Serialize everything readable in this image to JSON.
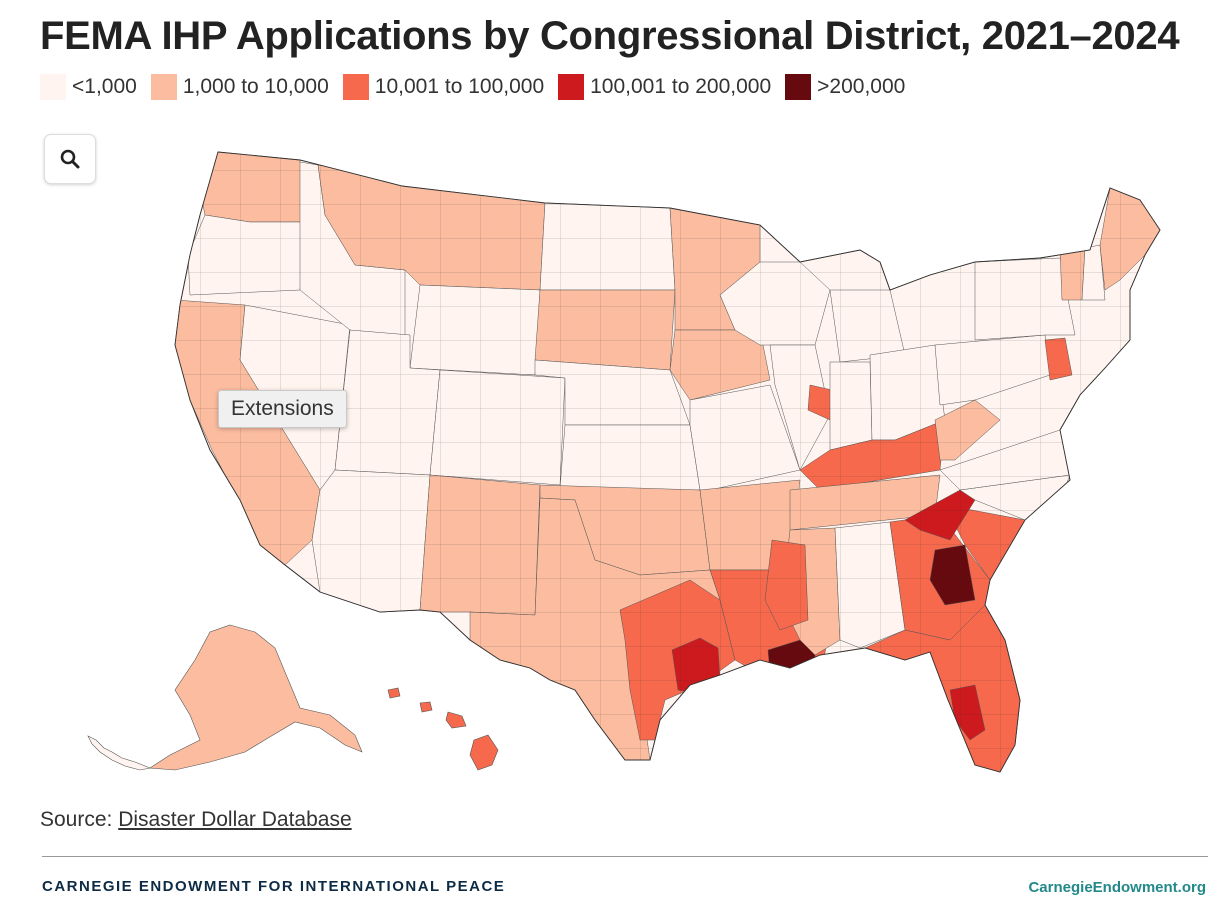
{
  "title": "FEMA IHP Applications by Congressional District, 2021–2024",
  "legend": [
    {
      "label": "<1,000",
      "color": "#fff4ef"
    },
    {
      "label": "1,000 to 10,000",
      "color": "#fbbc9f"
    },
    {
      "label": "10,001 to 100,000",
      "color": "#f6694d"
    },
    {
      "label": "100,001 to 200,000",
      "color": "#cc1a1f"
    },
    {
      "label": ">200,000",
      "color": "#670a0f"
    }
  ],
  "zoom_button": {
    "icon": "search-icon"
  },
  "tooltip": {
    "label": "Extensions"
  },
  "source": {
    "prefix": "Source:",
    "link_text": "Disaster Dollar Database"
  },
  "footer": {
    "org": "CARNEGIE ENDOWMENT FOR INTERNATIONAL PEACE",
    "site": "CarnegieEndowment.org"
  },
  "regions": [
    {
      "id": "washington",
      "cls": 1
    },
    {
      "id": "oregon",
      "cls": 0
    },
    {
      "id": "california",
      "cls": 1
    },
    {
      "id": "nevada",
      "cls": 0
    },
    {
      "id": "idaho",
      "cls": 0
    },
    {
      "id": "montana",
      "cls": 1
    },
    {
      "id": "wyoming",
      "cls": 0
    },
    {
      "id": "utah",
      "cls": 0
    },
    {
      "id": "arizona",
      "cls": 0
    },
    {
      "id": "colorado",
      "cls": 0
    },
    {
      "id": "new-mexico",
      "cls": 1
    },
    {
      "id": "north-dakota",
      "cls": 0
    },
    {
      "id": "south-dakota",
      "cls": 1
    },
    {
      "id": "nebraska",
      "cls": 0
    },
    {
      "id": "kansas",
      "cls": 0
    },
    {
      "id": "oklahoma",
      "cls": 1
    },
    {
      "id": "texas",
      "cls": 1
    },
    {
      "id": "texas-gulf-coast",
      "cls": 2
    },
    {
      "id": "houston",
      "cls": 3
    },
    {
      "id": "minnesota",
      "cls": 1
    },
    {
      "id": "iowa",
      "cls": 1
    },
    {
      "id": "missouri",
      "cls": 0
    },
    {
      "id": "arkansas",
      "cls": 1
    },
    {
      "id": "louisiana",
      "cls": 2
    },
    {
      "id": "new-orleans",
      "cls": 4
    },
    {
      "id": "wisconsin",
      "cls": 0
    },
    {
      "id": "illinois",
      "cls": 0
    },
    {
      "id": "illinois-south",
      "cls": 2
    },
    {
      "id": "michigan",
      "cls": 0
    },
    {
      "id": "indiana",
      "cls": 0
    },
    {
      "id": "ohio",
      "cls": 0
    },
    {
      "id": "kentucky",
      "cls": 2
    },
    {
      "id": "tennessee",
      "cls": 1
    },
    {
      "id": "mississippi",
      "cls": 1
    },
    {
      "id": "mississippi-delta",
      "cls": 2
    },
    {
      "id": "alabama",
      "cls": 0
    },
    {
      "id": "georgia",
      "cls": 2
    },
    {
      "id": "georgia-south",
      "cls": 4
    },
    {
      "id": "florida",
      "cls": 2
    },
    {
      "id": "florida-sw",
      "cls": 3
    },
    {
      "id": "south-carolina",
      "cls": 2
    },
    {
      "id": "north-carolina-west",
      "cls": 3
    },
    {
      "id": "north-carolina",
      "cls": 0
    },
    {
      "id": "virginia",
      "cls": 0
    },
    {
      "id": "west-virginia",
      "cls": 1
    },
    {
      "id": "pennsylvania",
      "cls": 0
    },
    {
      "id": "new-york",
      "cls": 0
    },
    {
      "id": "new-jersey",
      "cls": 2
    },
    {
      "id": "vermont",
      "cls": 1
    },
    {
      "id": "new-hampshire",
      "cls": 0
    },
    {
      "id": "maine",
      "cls": 1
    },
    {
      "id": "alaska",
      "cls": 1
    },
    {
      "id": "hawaii",
      "cls": 2
    }
  ]
}
